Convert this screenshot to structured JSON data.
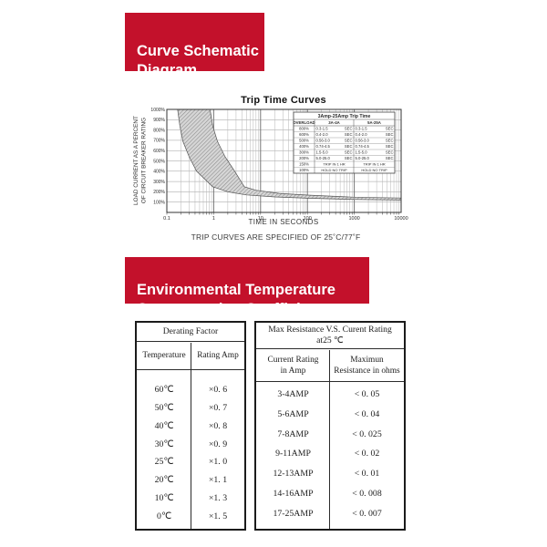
{
  "theme": {
    "banner_red": "#c3112b",
    "banner_text": "#ffffff"
  },
  "banners": {
    "curve_schematic": "Curve Schematic\nDiagram",
    "env_temp": "Environmental Temperature\nCompensation Coefficient"
  },
  "chart_data": {
    "type": "area",
    "title": "Trip Time Curves",
    "xlabel": "TIME IN SECONDS",
    "ylabel": "LOAD CURRENT AS A PERCENT OF CIRCUIT BREAKER RATING",
    "ylabel_lines": [
      "LOAD CURRENT AS A PERCENT",
      "OF CIRCUIT BREAKER RATING"
    ],
    "caption": "TRIP CURVES ARE SPECIFIED OF 25˚C/77˚F",
    "x_scale": "log",
    "x_range": [
      0.1,
      10000
    ],
    "x_ticks": [
      "0.1",
      "1",
      "10",
      "100",
      "1000",
      "10000"
    ],
    "y_range": [
      0,
      1000
    ],
    "y_ticks": [
      "100%",
      "200%",
      "300%",
      "400%",
      "500%",
      "600%",
      "700%",
      "800%",
      "900%",
      "1000%"
    ],
    "grid": true,
    "band": {
      "name": "trip-time-region",
      "min_curve": [
        [
          0.17,
          1000
        ],
        [
          0.19,
          840
        ],
        [
          0.22,
          690
        ],
        [
          0.3,
          540
        ],
        [
          0.43,
          400
        ],
        [
          0.95,
          250
        ],
        [
          2,
          200
        ],
        [
          5,
          170
        ],
        [
          20,
          150
        ],
        [
          100,
          138
        ],
        [
          1000,
          126
        ],
        [
          10000,
          120
        ]
      ],
      "max_curve": [
        [
          0.83,
          1000
        ],
        [
          0.95,
          840
        ],
        [
          1.2,
          690
        ],
        [
          1.75,
          540
        ],
        [
          2.8,
          400
        ],
        [
          4.5,
          250
        ],
        [
          8,
          215
        ],
        [
          25,
          185
        ],
        [
          100,
          168
        ],
        [
          1000,
          148
        ],
        [
          10000,
          140
        ]
      ]
    },
    "trip_table": {
      "title": "3Amp-25Amp Trip Time",
      "headers": [
        "OVERLOAD",
        "3A-4A",
        "5A-25A"
      ],
      "rows": [
        {
          "overload": "800%",
          "a": "0.3-1.5",
          "b": "0.3-1.5",
          "unit": "SEC"
        },
        {
          "overload": "600%",
          "a": "0.4-2.0",
          "b": "0.4-2.0",
          "unit": "SEC"
        },
        {
          "overload": "500%",
          "a": "0.56-3.0",
          "b": "0.56-3.0",
          "unit": "SEC"
        },
        {
          "overload": "400%",
          "a": "0.74-4.5",
          "b": "0.74-4.5",
          "unit": "SEC"
        },
        {
          "overload": "300%",
          "a": "1.5-5.0",
          "b": "1.5-5.0",
          "unit": "SEC"
        },
        {
          "overload": "200%",
          "a": "5.0-25.0",
          "b": "5.0-25.0",
          "unit": "SEC"
        },
        {
          "overload": "150%",
          "a": "TRIP IN 1 HR",
          "b": "TRIP IN 1 HR",
          "unit": ""
        },
        {
          "overload": "100%",
          "a": "HOLD NO TRIP",
          "b": "HOLD NO TRIP",
          "unit": ""
        }
      ]
    }
  },
  "tables": {
    "derating": {
      "title": "Derating Factor",
      "columns": [
        "Temperature",
        "Rating Amp"
      ],
      "rows": [
        [
          "60℃",
          "×0. 6"
        ],
        [
          "50℃",
          "×0. 7"
        ],
        [
          "40℃",
          "×0. 8"
        ],
        [
          "30℃",
          "×0. 9"
        ],
        [
          "25℃",
          "×1. 0"
        ],
        [
          "20℃",
          "×1. 1"
        ],
        [
          "10℃",
          "×1. 3"
        ],
        [
          "0℃",
          "×1. 5"
        ]
      ]
    },
    "resistance": {
      "title": "Max Resistance V.S. Curent Rating\nat25 ℃",
      "columns": [
        "Current Rating\nin Amp",
        "Maximun\nResistance in ohms"
      ],
      "rows": [
        [
          "3-4AMP",
          "< 0. 05"
        ],
        [
          "5-6AMP",
          "< 0. 04"
        ],
        [
          "7-8AMP",
          "< 0. 025"
        ],
        [
          "9-11AMP",
          "< 0. 02"
        ],
        [
          "12-13AMP",
          "< 0. 01"
        ],
        [
          "14-16AMP",
          "< 0. 008"
        ],
        [
          "17-25AMP",
          "< 0. 007"
        ]
      ]
    }
  }
}
